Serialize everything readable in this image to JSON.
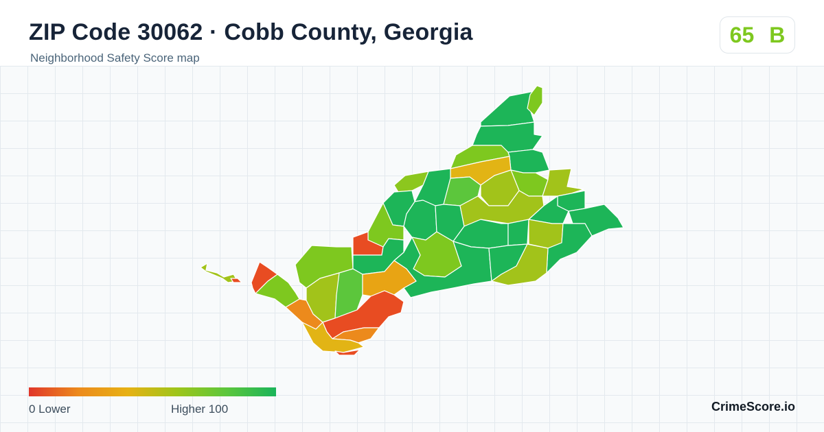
{
  "header": {
    "title": "ZIP Code 30062 · Cobb County, Georgia",
    "subtitle": "Neighborhood Safety Score map"
  },
  "score": {
    "value": "65",
    "grade": "B",
    "color": "#7ec81f"
  },
  "map": {
    "map_type": "choropleth",
    "region": "ZIP Code 30062",
    "stroke_color": "#ffffff"
  },
  "legend": {
    "min_label": "0  Lower",
    "max_label": "Higher  100",
    "colors": [
      "#e0362a",
      "#ec8a1c",
      "#e7b114",
      "#9ec51a",
      "#5cc63c",
      "#1bb45a"
    ]
  },
  "brand": {
    "name": "CrimeScore.io"
  }
}
